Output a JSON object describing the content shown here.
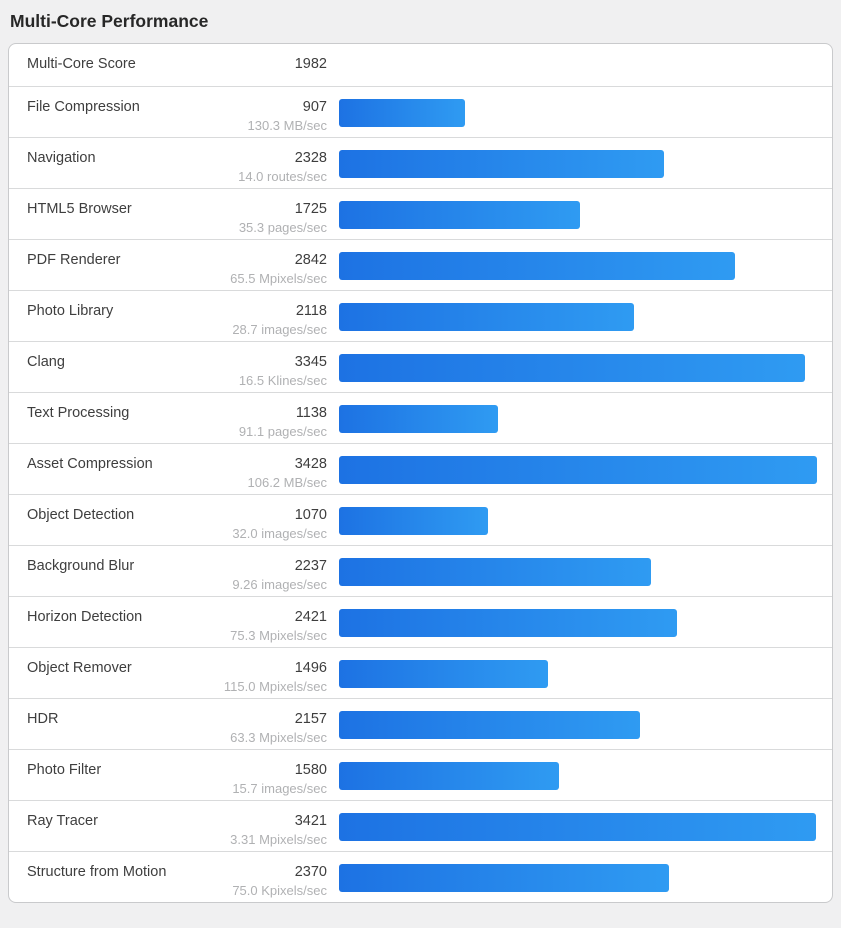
{
  "page": {
    "title": "Multi-Core Performance"
  },
  "chart_data": {
    "type": "bar",
    "title": "Multi-Core Performance",
    "orientation": "horizontal",
    "summary": {
      "label": "Multi-Core Score",
      "value": "1982"
    },
    "categories": [
      "File Compression",
      "Navigation",
      "HTML5 Browser",
      "PDF Renderer",
      "Photo Library",
      "Clang",
      "Text Processing",
      "Asset Compression",
      "Object Detection",
      "Background Blur",
      "Horizon Detection",
      "Object Remover",
      "HDR",
      "Photo Filter",
      "Ray Tracer",
      "Structure from Motion"
    ],
    "values": [
      907,
      2328,
      1725,
      2842,
      2118,
      3345,
      1138,
      3428,
      1070,
      2237,
      2421,
      1496,
      2157,
      1580,
      3421,
      2370
    ],
    "rate_labels": [
      "130.3 MB/sec",
      "14.0 routes/sec",
      "35.3 pages/sec",
      "65.5 Mpixels/sec",
      "28.7 images/sec",
      "16.5 Klines/sec",
      "91.1 pages/sec",
      "106.2 MB/sec",
      "32.0 images/sec",
      "9.26 images/sec",
      "75.3 Mpixels/sec",
      "115.0 Mpixels/sec",
      "63.3 Mpixels/sec",
      "15.7 images/sec",
      "3.31 Mpixels/sec",
      "75.0 Kpixels/sec"
    ],
    "xlim": [
      0,
      3428
    ],
    "legend": "none",
    "grid": "off",
    "colors": {
      "bar_gradient_start": "#1d72e3",
      "bar_gradient_end": "#2f9bf2",
      "score_text": "#3e3e3e",
      "rate_text": "#b0b1b3",
      "row_separator": "#d9dadb",
      "card_border": "#c9cacc",
      "page_background": "#f0f0f1"
    }
  }
}
